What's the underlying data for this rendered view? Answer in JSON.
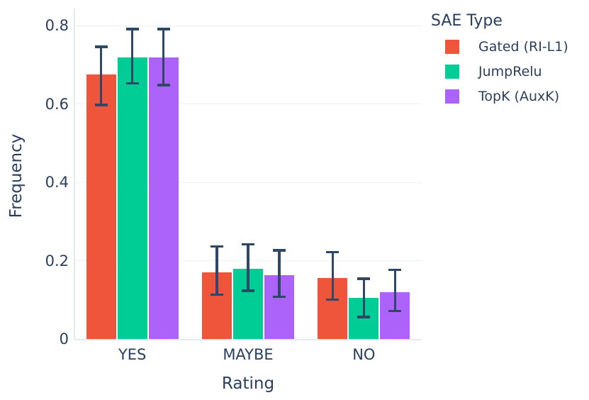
{
  "chart_data": {
    "type": "bar",
    "title": "",
    "xlabel": "Rating",
    "ylabel": "Frequency",
    "legend_title": "SAE Type",
    "legend_position": "top-right",
    "grid": "horizontal-faint",
    "categories": [
      "YES",
      "MAYBE",
      "NO"
    ],
    "series": [
      {
        "name": "Gated (RI-L1)",
        "color": "#EF553B",
        "values": [
          0.675,
          0.17,
          0.155
        ],
        "error_low": [
          0.595,
          0.11,
          0.097
        ],
        "error_high": [
          0.75,
          0.24,
          0.225
        ]
      },
      {
        "name": "JumpRelu",
        "color": "#00CC96",
        "values": [
          0.72,
          0.18,
          0.105
        ],
        "error_low": [
          0.65,
          0.12,
          0.053
        ],
        "error_high": [
          0.795,
          0.245,
          0.157
        ]
      },
      {
        "name": "TopK (AuxK)",
        "color": "#AB63FA",
        "values": [
          0.72,
          0.163,
          0.119
        ],
        "error_low": [
          0.645,
          0.105,
          0.068
        ],
        "error_high": [
          0.795,
          0.23,
          0.18
        ]
      }
    ],
    "yticks": [
      0,
      0.2,
      0.4,
      0.6,
      0.8
    ],
    "ylim": [
      0,
      0.845
    ]
  },
  "colors": {
    "text": "#2a3f5f",
    "error_bar": "#2e4865",
    "grid": "#edf0f6",
    "axis_line": "#e4e9f2",
    "background": "#ffffff"
  }
}
